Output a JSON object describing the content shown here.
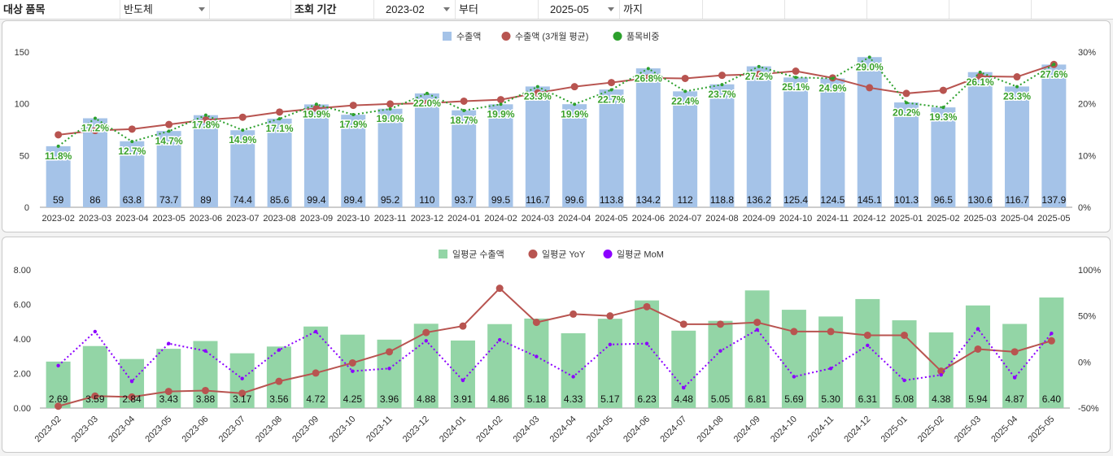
{
  "filters": {
    "item_label": "대상 품목",
    "item_value": "반도체",
    "period_label": "조회 기간",
    "start_value": "2023-02",
    "from_label": "부터",
    "end_value": "2025-05",
    "to_label": "까지"
  },
  "colors": {
    "bar1": "#a5c3e8",
    "avg_line": "#b85450",
    "share_line": "#2ca02c",
    "bar2": "#93d5a6",
    "yoy_line": "#b85450",
    "mom_line": "#8b00ff"
  },
  "chart_data": [
    {
      "type": "bar",
      "title": "",
      "categories": [
        "2023-02",
        "2023-03",
        "2023-04",
        "2023-05",
        "2023-06",
        "2023-07",
        "2023-08",
        "2023-09",
        "2023-10",
        "2023-11",
        "2023-12",
        "2024-01",
        "2024-02",
        "2024-03",
        "2024-04",
        "2024-05",
        "2024-06",
        "2024-07",
        "2024-08",
        "2024-09",
        "2024-10",
        "2024-11",
        "2024-12",
        "2025-01",
        "2025-02",
        "2025-03",
        "2025-04",
        "2025-05"
      ],
      "legend": [
        "수출액",
        "수출액 (3개월 평균)",
        "품목비중"
      ],
      "series": [
        {
          "name": "수출액",
          "kind": "bar",
          "axis": "left",
          "values": [
            59,
            86,
            63.8,
            73.7,
            89,
            74.4,
            85.6,
            99.4,
            89.4,
            95.2,
            110,
            93.7,
            99.5,
            116.7,
            99.6,
            113.8,
            134.2,
            112,
            118.8,
            136.2,
            125.4,
            124.5,
            145.1,
            101.3,
            96.5,
            130.6,
            116.7,
            137.9
          ],
          "labels": [
            "59",
            "86",
            "63.8",
            "73.7",
            "89",
            "74.4",
            "85.6",
            "99.4",
            "89.4",
            "95.2",
            "110",
            "93.7",
            "99.5",
            "116.7",
            "99.6",
            "113.8",
            "134.2",
            "112",
            "118.8",
            "136.2",
            "125.4",
            "124.5",
            "145.1",
            "101.3",
            "96.5",
            "130.6",
            "116.7",
            "137.9"
          ]
        },
        {
          "name": "수출액 (3개월 평균)",
          "kind": "line",
          "axis": "left",
          "values": [
            70,
            74.2,
            75.5,
            80,
            84.5,
            87,
            92,
            95.5,
            98.5,
            99.8,
            100.5,
            102.5,
            104,
            110.5,
            116.5,
            120.5,
            125,
            124.5,
            127.5,
            128.5,
            131.5,
            125,
            115.5,
            110,
            113,
            126.5,
            126,
            138
          ]
        },
        {
          "name": "품목비중",
          "kind": "line",
          "axis": "right",
          "values": [
            11.8,
            17.2,
            12.7,
            14.7,
            17.8,
            14.9,
            17.1,
            19.9,
            17.9,
            19.0,
            22.0,
            18.7,
            19.9,
            23.3,
            19.9,
            22.7,
            26.8,
            22.4,
            23.7,
            27.2,
            25.1,
            24.9,
            29.0,
            20.2,
            19.3,
            26.1,
            23.3,
            27.6
          ],
          "labels": [
            "11.8%",
            "17.2%",
            "12.7%",
            "14.7%",
            "17.8%",
            "14.9%",
            "17.1%",
            "19.9%",
            "17.9%",
            "19.0%",
            "22.0%",
            "18.7%",
            "19.9%",
            "23.3%",
            "19.9%",
            "22.7%",
            "26.8%",
            "22.4%",
            "23.7%",
            "27.2%",
            "25.1%",
            "24.9%",
            "29.0%",
            "20.2%",
            "19.3%",
            "26.1%",
            "23.3%",
            "27.6%"
          ]
        }
      ],
      "ylim": [
        0,
        150
      ],
      "yticks": [
        0,
        50,
        100,
        150
      ],
      "ytick_labels": [
        "0",
        "50",
        "100",
        "150"
      ],
      "y2lim": [
        0,
        30
      ],
      "y2ticks": [
        0,
        10,
        20,
        30
      ],
      "y2tick_labels": [
        "0%",
        "10%",
        "20%",
        "30%"
      ]
    },
    {
      "type": "bar",
      "title": "",
      "categories": [
        "2023-02",
        "2023-03",
        "2023-04",
        "2023-05",
        "2023-06",
        "2023-07",
        "2023-08",
        "2023-09",
        "2023-10",
        "2023-11",
        "2023-12",
        "2024-01",
        "2024-02",
        "2024-03",
        "2024-04",
        "2024-05",
        "2024-06",
        "2024-07",
        "2024-08",
        "2024-09",
        "2024-10",
        "2024-11",
        "2024-12",
        "2025-01",
        "2025-02",
        "2025-03",
        "2025-04",
        "2025-05"
      ],
      "legend": [
        "일평균 수출액",
        "일평균 YoY",
        "일평균 MoM"
      ],
      "series": [
        {
          "name": "일평균 수출액",
          "kind": "bar",
          "axis": "left",
          "values": [
            2.69,
            3.59,
            2.84,
            3.43,
            3.88,
            3.17,
            3.56,
            4.72,
            4.25,
            3.96,
            4.88,
            3.91,
            4.86,
            5.18,
            4.33,
            5.17,
            6.23,
            4.48,
            5.05,
            6.81,
            5.69,
            5.3,
            6.31,
            5.08,
            4.38,
            5.94,
            4.87,
            6.4
          ],
          "labels": [
            "2.69",
            "3.59",
            "2.84",
            "3.43",
            "3.88",
            "3.17",
            "3.56",
            "4.72",
            "4.25",
            "3.96",
            "4.88",
            "3.91",
            "4.86",
            "5.18",
            "4.33",
            "5.17",
            "6.23",
            "4.48",
            "5.05",
            "6.81",
            "5.69",
            "5.30",
            "6.31",
            "5.08",
            "4.38",
            "5.94",
            "4.87",
            "6.40"
          ]
        },
        {
          "name": "일평균 YoY",
          "kind": "line",
          "axis": "right",
          "values": [
            -48,
            -37,
            -38,
            -32,
            -31,
            -34,
            -21,
            -12,
            -1,
            11,
            32,
            39,
            80,
            43,
            52,
            50,
            60,
            41,
            41,
            43,
            33,
            33,
            29,
            29,
            -10,
            14,
            11,
            23
          ]
        },
        {
          "name": "일평균 MoM",
          "kind": "line",
          "axis": "right",
          "values": [
            -4,
            33,
            -21,
            20,
            12,
            -18,
            13,
            33,
            -10,
            -7,
            23,
            -20,
            24,
            6,
            -16,
            19,
            20,
            -28,
            12,
            35,
            -16,
            -7,
            18,
            -20,
            -14,
            36,
            -17,
            31
          ]
        }
      ],
      "ylim": [
        0,
        8
      ],
      "yticks": [
        0,
        2,
        4,
        6,
        8
      ],
      "ytick_labels": [
        "0.00",
        "2.00",
        "4.00",
        "6.00",
        "8.00"
      ],
      "y2lim": [
        -50,
        100
      ],
      "y2ticks": [
        -50,
        0,
        50,
        100
      ],
      "y2tick_labels": [
        "-50%",
        "0%",
        "50%",
        "100%"
      ]
    }
  ]
}
